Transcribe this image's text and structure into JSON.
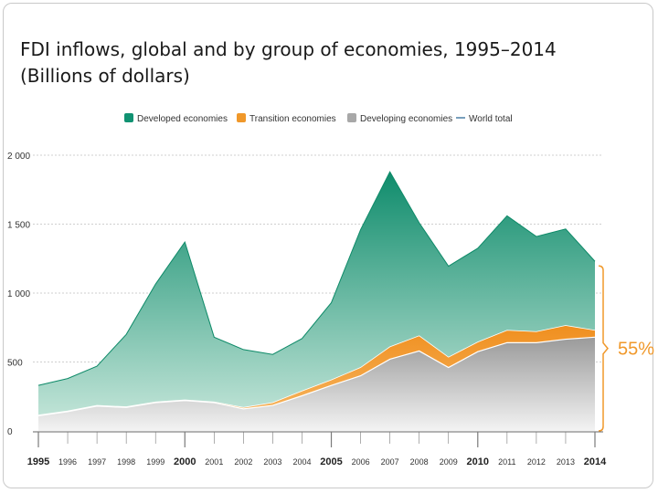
{
  "slide": {
    "title_line1": "FDI inflows, global and by group of economies, 1995–2014",
    "title_line2": "(Billions of dollars)"
  },
  "chart_data": {
    "type": "area",
    "stacked": true,
    "title": "FDI inflows, global and by group of economies, 1995–2014 (Billions of dollars)",
    "xlabel": "",
    "ylabel": "",
    "x": [
      1995,
      1996,
      1997,
      1998,
      1999,
      2000,
      2001,
      2002,
      2003,
      2004,
      2005,
      2006,
      2007,
      2008,
      2009,
      2010,
      2011,
      2012,
      2013,
      2014
    ],
    "x_tick_labels": [
      "1995",
      "1996",
      "1997",
      "1998",
      "1999",
      "2000",
      "2001",
      "2002",
      "2003",
      "2004",
      "2005",
      "2006",
      "2007",
      "2008",
      "2009",
      "2010",
      "2011",
      "2012",
      "2013",
      "2014"
    ],
    "x_major_ticks": [
      "1995",
      "2000",
      "2005",
      "2010",
      "2014"
    ],
    "ylim": [
      0,
      2000
    ],
    "y_ticks": [
      0,
      500,
      1000,
      1500,
      2000
    ],
    "y_tick_labels": [
      "0",
      "500",
      "1 000",
      "1 500",
      "2 000"
    ],
    "gridlines": true,
    "legend_position": "top",
    "series": [
      {
        "name": "Developing economies",
        "color": "#a8a8a8",
        "values": [
          110,
          140,
          180,
          170,
          205,
          220,
          205,
          160,
          185,
          255,
          330,
          400,
          520,
          580,
          460,
          575,
          640,
          640,
          665,
          680
        ]
      },
      {
        "name": "Transition economies",
        "color": "#f0982a",
        "values": [
          5,
          5,
          5,
          5,
          5,
          5,
          5,
          10,
          20,
          35,
          40,
          60,
          90,
          110,
          75,
          70,
          90,
          80,
          100,
          50
        ]
      },
      {
        "name": "Developed economies",
        "color": "#119272",
        "values": [
          215,
          235,
          285,
          525,
          855,
          1145,
          470,
          420,
          350,
          380,
          560,
          1000,
          1270,
          820,
          660,
          680,
          830,
          690,
          700,
          500
        ]
      },
      {
        "name": "World total",
        "color": "#4a7fa5",
        "type": "line",
        "values": [
          330,
          380,
          470,
          700,
          1065,
          1370,
          680,
          590,
          555,
          670,
          930,
          1460,
          1880,
          1510,
          1195,
          1325,
          1560,
          1410,
          1465,
          1230
        ]
      }
    ],
    "annotations": [
      {
        "text": "55%",
        "color": "#f0982a",
        "refers_to": "Developing economies share of 2014 total"
      }
    ]
  }
}
